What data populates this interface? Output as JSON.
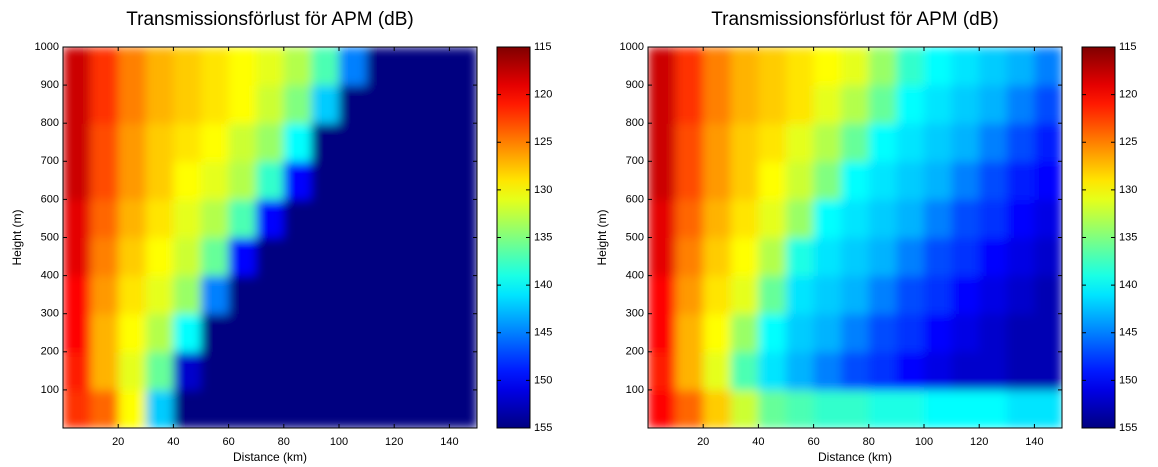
{
  "chart_data": [
    {
      "type": "heatmap",
      "title": "Transmissionsförlust för APM (dB)",
      "xlabel": "Distance (km)",
      "ylabel": "Height (m)",
      "xlim": [
        0,
        150
      ],
      "xticks": [
        20,
        40,
        60,
        80,
        100,
        120,
        140
      ],
      "ylim": [
        0,
        1000
      ],
      "yticks": [
        100,
        200,
        300,
        400,
        500,
        600,
        700,
        800,
        900,
        1000
      ],
      "colormap": "jet",
      "colorbar": {
        "lim": [
          115,
          155
        ],
        "ticks": [
          115,
          120,
          125,
          130,
          135,
          140,
          145,
          150,
          155
        ],
        "reversed": true
      },
      "xbins": [
        0,
        10,
        20,
        30,
        40,
        50,
        60,
        70,
        80,
        90,
        100,
        110,
        120,
        130,
        140,
        150
      ],
      "ybins": [
        0,
        100,
        200,
        300,
        400,
        500,
        600,
        700,
        800,
        900,
        1000
      ],
      "values": [
        [
          122,
          124,
          130,
          142,
          155,
          155,
          155,
          155,
          155,
          155,
          155,
          155,
          155,
          155,
          155
        ],
        [
          121,
          127,
          131,
          136,
          152,
          155,
          155,
          155,
          155,
          155,
          155,
          155,
          155,
          155,
          155
        ],
        [
          120,
          127,
          130,
          133,
          140,
          155,
          155,
          155,
          155,
          155,
          155,
          155,
          155,
          155,
          155
        ],
        [
          120,
          126,
          129,
          131,
          134,
          145,
          155,
          155,
          155,
          155,
          155,
          155,
          155,
          155,
          155
        ],
        [
          119,
          125,
          128,
          130,
          132,
          136,
          150,
          155,
          155,
          155,
          155,
          155,
          155,
          155,
          155
        ],
        [
          119,
          124,
          127,
          129,
          131,
          133,
          137,
          150,
          155,
          155,
          155,
          155,
          155,
          155,
          155
        ],
        [
          118,
          123,
          126,
          128,
          130,
          131,
          133,
          138,
          150,
          155,
          155,
          155,
          155,
          155,
          155
        ],
        [
          118,
          123,
          126,
          128,
          129,
          130,
          132,
          134,
          140,
          155,
          155,
          155,
          155,
          155,
          155
        ],
        [
          118,
          122,
          125,
          127,
          128,
          129,
          130,
          132,
          135,
          142,
          155,
          155,
          155,
          155,
          155
        ],
        [
          118,
          122,
          125,
          127,
          128,
          129,
          130,
          131,
          133,
          137,
          145,
          155,
          155,
          155,
          155
        ]
      ]
    },
    {
      "type": "heatmap",
      "title": "Transmissionsförlust för APM (dB)",
      "xlabel": "Distance (km)",
      "ylabel": "Height (m)",
      "xlim": [
        0,
        150
      ],
      "xticks": [
        20,
        40,
        60,
        80,
        100,
        120,
        140
      ],
      "ylim": [
        0,
        1000
      ],
      "yticks": [
        100,
        200,
        300,
        400,
        500,
        600,
        700,
        800,
        900,
        1000
      ],
      "colormap": "jet",
      "colorbar": {
        "lim": [
          115,
          155
        ],
        "ticks": [
          115,
          120,
          125,
          130,
          135,
          140,
          145,
          150,
          155
        ],
        "reversed": true
      },
      "xbins": [
        0,
        10,
        20,
        30,
        40,
        50,
        60,
        70,
        80,
        90,
        100,
        110,
        120,
        130,
        140,
        150
      ],
      "ybins": [
        0,
        100,
        200,
        300,
        400,
        500,
        600,
        700,
        800,
        900,
        1000
      ],
      "values": [
        [
          120,
          124,
          128,
          132,
          136,
          137,
          138,
          138,
          139,
          139,
          140,
          140,
          140,
          141,
          141
        ],
        [
          121,
          127,
          131,
          137,
          141,
          143,
          145,
          147,
          148,
          150,
          151,
          152,
          152,
          153,
          153
        ],
        [
          120,
          127,
          130,
          134,
          140,
          142,
          143,
          145,
          147,
          148,
          150,
          151,
          152,
          153,
          153
        ],
        [
          120,
          126,
          129,
          131,
          136,
          141,
          142,
          143,
          145,
          147,
          148,
          150,
          151,
          152,
          153
        ],
        [
          119,
          125,
          128,
          130,
          133,
          139,
          141,
          142,
          143,
          145,
          147,
          148,
          150,
          151,
          152
        ],
        [
          119,
          124,
          127,
          129,
          131,
          134,
          140,
          141,
          142,
          143,
          145,
          147,
          148,
          150,
          151
        ],
        [
          118,
          123,
          126,
          128,
          130,
          132,
          135,
          140,
          141,
          142,
          143,
          145,
          147,
          149,
          150
        ],
        [
          118,
          123,
          126,
          128,
          129,
          131,
          133,
          136,
          140,
          141,
          142,
          143,
          145,
          147,
          149
        ],
        [
          118,
          122,
          125,
          127,
          128,
          129,
          131,
          133,
          136,
          140,
          141,
          142,
          143,
          145,
          147
        ],
        [
          118,
          122,
          125,
          127,
          128,
          129,
          130,
          131,
          134,
          138,
          140,
          141,
          142,
          143,
          145
        ]
      ]
    }
  ]
}
